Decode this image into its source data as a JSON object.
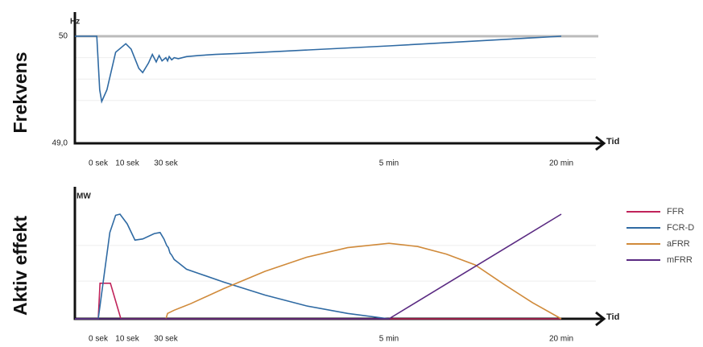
{
  "chart_data": [
    {
      "type": "line",
      "axis_title": "Frekvens",
      "unit": "Hz",
      "x_label": "Tid",
      "xlim": [
        -8,
        1400
      ],
      "xticks": [
        {
          "value": 0,
          "label": "0 sek"
        },
        {
          "value": 10,
          "label": "10 sek"
        },
        {
          "value": 30,
          "label": "30 sek"
        },
        {
          "value": 300,
          "label": "5 min"
        },
        {
          "value": 1200,
          "label": "20 min"
        }
      ],
      "ylim": [
        49,
        50
      ],
      "yticks": [
        {
          "value": 49,
          "label": "49,0"
        },
        50
      ],
      "grid": true,
      "series": [
        {
          "name": "Frekvens",
          "color": "#2f6aa3",
          "x": [
            -8,
            -0.5,
            0.5,
            1.2,
            3,
            6,
            9.5,
            12,
            16,
            18,
            21,
            23,
            25,
            26.5,
            28,
            30,
            32,
            34,
            37,
            40,
            45,
            55,
            70,
            90,
            120,
            300,
            1200
          ],
          "values": [
            50,
            50,
            49.5,
            49.39,
            49.5,
            49.85,
            49.93,
            49.88,
            49.7,
            49.66,
            49.75,
            49.83,
            49.76,
            49.82,
            49.77,
            49.8,
            49.77,
            49.81,
            49.78,
            49.8,
            49.79,
            49.81,
            49.82,
            49.83,
            49.84,
            49.91,
            50
          ]
        }
      ]
    },
    {
      "type": "line",
      "axis_title": "Aktiv effekt",
      "unit": "MW",
      "x_label": "Tid",
      "xlim": [
        -8,
        1400
      ],
      "xticks": [
        {
          "value": 0,
          "label": "0 sek"
        },
        {
          "value": 10,
          "label": "10 sek"
        },
        {
          "value": 30,
          "label": "30 sek"
        },
        {
          "value": 300,
          "label": "5 min"
        },
        {
          "value": 1200,
          "label": "20 min"
        }
      ],
      "ylim": [
        0,
        100
      ],
      "legend": "right",
      "series": [
        {
          "name": "FFR",
          "color": "#c0235a",
          "x": [
            -8,
            0,
            0.6,
            4.2,
            7.8,
            1200
          ],
          "values": [
            0,
            0,
            33,
            33,
            0,
            0
          ]
        },
        {
          "name": "FCR-D",
          "color": "#2f6aa3",
          "x": [
            -8,
            0,
            2,
            4,
            6,
            7.5,
            10,
            14,
            18,
            24,
            27,
            29,
            31,
            33,
            35,
            37,
            40,
            45,
            55,
            70,
            100,
            150,
            200,
            250,
            300
          ],
          "values": [
            0,
            0,
            40,
            80,
            96,
            97,
            88,
            73,
            74,
            79,
            80,
            74,
            68,
            66,
            61,
            59,
            55,
            52,
            46,
            42,
            34,
            22,
            12,
            5,
            0
          ]
        },
        {
          "name": "aFRR",
          "color": "#d08a3a",
          "x": [
            30,
            32,
            40,
            60,
            100,
            150,
            200,
            250,
            300,
            450,
            600,
            750,
            900,
            1050,
            1200
          ],
          "values": [
            0,
            5,
            8,
            14,
            28,
            44,
            57,
            66,
            70,
            67,
            60,
            50,
            32,
            15,
            0
          ]
        },
        {
          "name": "mFRR",
          "color": "#5a2a82",
          "x": [
            -8,
            300,
            1200
          ],
          "values": [
            0,
            0,
            97
          ]
        }
      ]
    }
  ]
}
